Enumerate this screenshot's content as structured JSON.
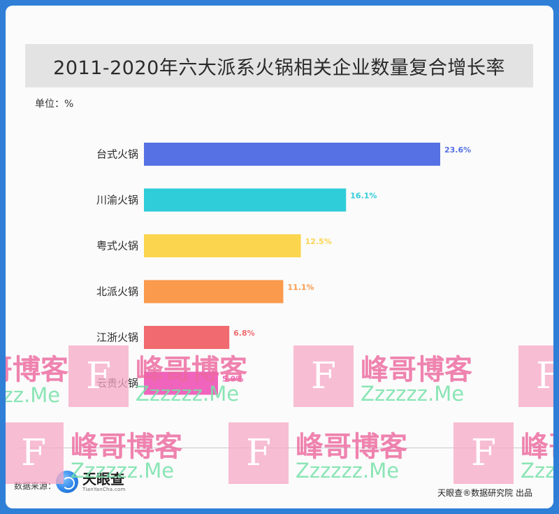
{
  "title": "2011-2020年六大派系火锅相关企业数量复合增长率",
  "unit_label": "单位：%",
  "chart_data": {
    "type": "bar",
    "orientation": "horizontal",
    "title": "2011-2020年六大派系火锅相关企业数量复合增长率",
    "unit": "%",
    "categories": [
      "台式火锅",
      "川渝火锅",
      "粤式火锅",
      "北派火锅",
      "江浙火锅",
      "云贵火锅"
    ],
    "values": [
      23.6,
      16.1,
      12.5,
      11.1,
      6.8,
      5.9
    ],
    "value_labels": [
      "23.6%",
      "16.1%",
      "12.5%",
      "11.1%",
      "6.8%",
      "5.9%"
    ],
    "colors": [
      "#5571e4",
      "#2fcdd9",
      "#fbd54e",
      "#fa9a4c",
      "#f06a6f",
      "#f064bd"
    ],
    "xlim": [
      0,
      23.6
    ],
    "grid": false,
    "legend": "none"
  },
  "footer": {
    "source_label": "数据来源：",
    "logo_name": "天眼查",
    "logo_url_text": "TianYanCha.com",
    "credit": "天眼查®数据研究院 出品"
  },
  "watermark": {
    "letter": "F",
    "chinese": "峰哥博客",
    "domain": "Zzzzzz.Me",
    "colors": {
      "box": "#f6a8c6",
      "chinese": "#ec689e",
      "domain": "#76e0a8"
    }
  }
}
